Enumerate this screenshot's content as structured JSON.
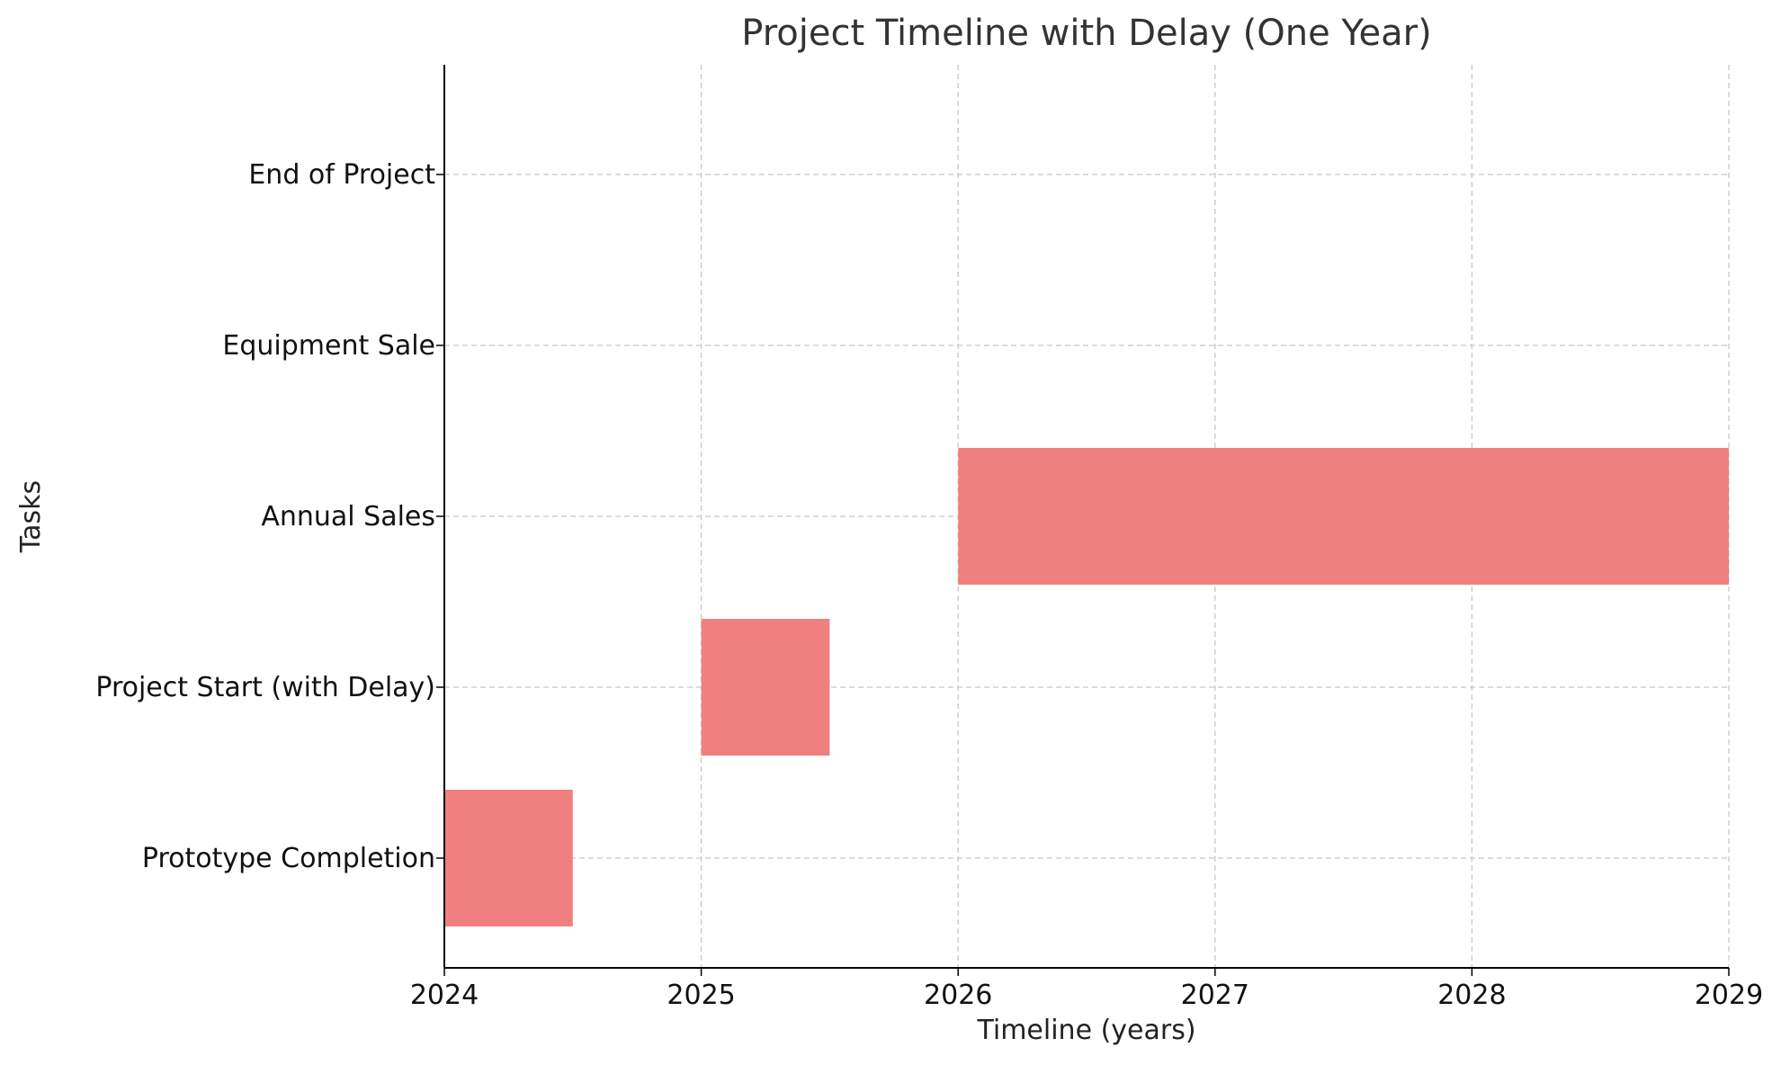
{
  "chart_data": {
    "type": "bar",
    "orientation": "horizontal",
    "title": "Project Timeline with Delay (One Year)",
    "xlabel": "Timeline (years)",
    "ylabel": "Tasks",
    "xlim": [
      2024,
      2029
    ],
    "xticks": [
      "2024",
      "2025",
      "2026",
      "2027",
      "2028",
      "2029"
    ],
    "grid": true,
    "bar_color": "#f08080",
    "categories": [
      "Prototype Completion",
      "Project Start (with Delay)",
      "Annual Sales",
      "Equipment Sale",
      "End of Project"
    ],
    "tasks": [
      {
        "name": "Prototype Completion",
        "start": 2024.0,
        "end": 2024.5
      },
      {
        "name": "Project Start (with Delay)",
        "start": 2025.0,
        "end": 2025.5
      },
      {
        "name": "Annual Sales",
        "start": 2026.0,
        "end": 2029.0
      },
      {
        "name": "Equipment Sale",
        "start": null,
        "end": null
      },
      {
        "name": "End of Project",
        "start": null,
        "end": null
      }
    ]
  }
}
